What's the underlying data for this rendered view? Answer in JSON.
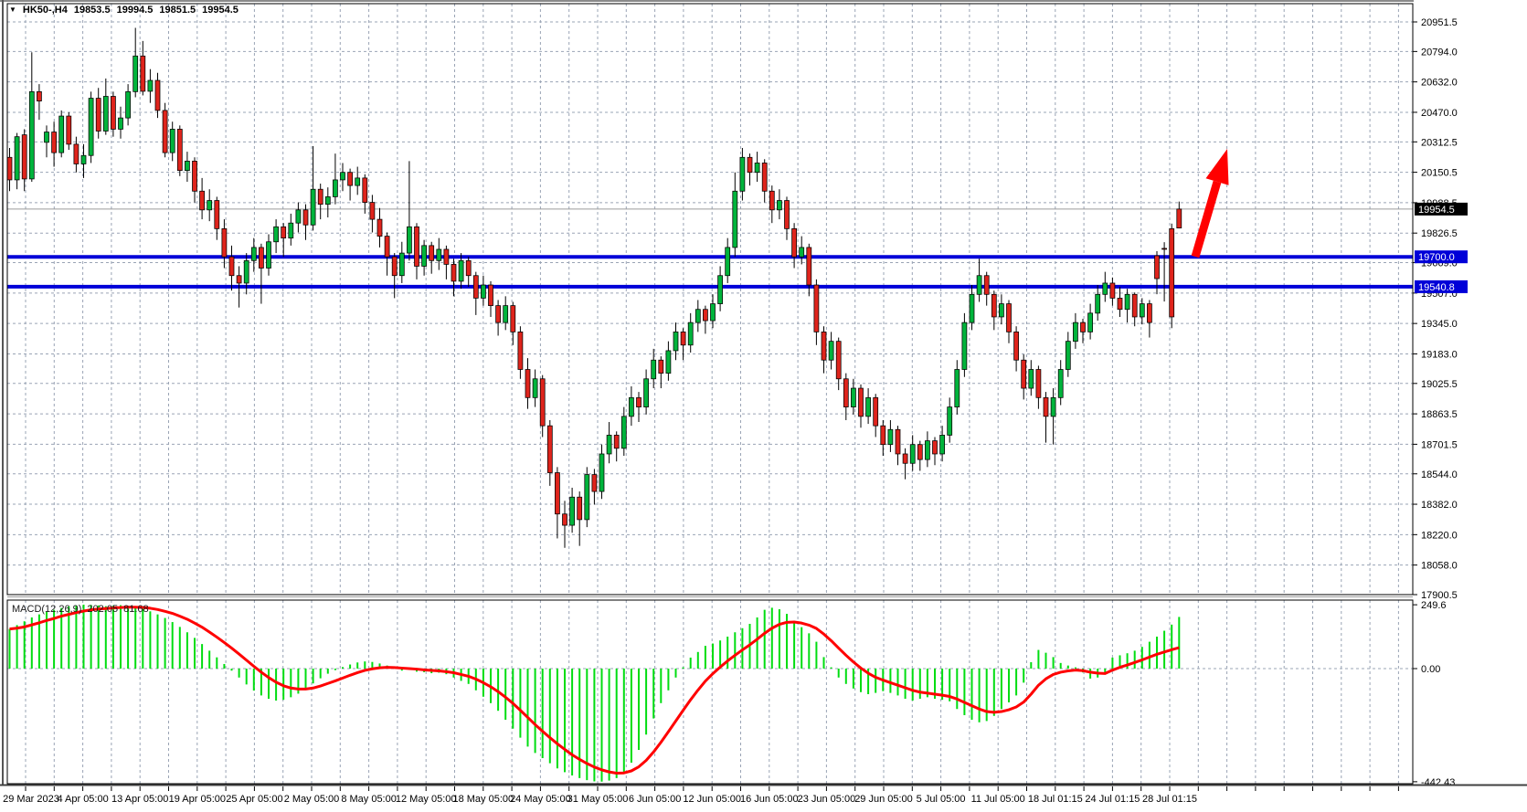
{
  "window": {
    "top_info": {
      "symbol_period": "HK50-,H4",
      "open": "19853.5",
      "high": "19994.5",
      "low": "19851.5",
      "close": "19954.5"
    }
  },
  "indicator_label": {
    "name": "MACD(12,26,9)",
    "macd_value": "202.05",
    "signal_value": "81.68"
  },
  "price_axis": {
    "labels": [
      "20951.5",
      "20794.0",
      "20632.0",
      "20470.0",
      "20312.5",
      "20150.5",
      "19988.5",
      "19826.5",
      "19669.0",
      "19507.0",
      "19345.0",
      "19183.0",
      "19025.5",
      "18863.5",
      "18701.5",
      "18544.0",
      "18382.0",
      "18220.0",
      "18058.0",
      "17900.5"
    ],
    "current_price_tag": "19954.5",
    "level_tags": [
      "19700.0",
      "19540.8"
    ]
  },
  "macd_axis": {
    "max": "249.6",
    "zero": "0.00",
    "min": "-442.43"
  },
  "time_axis": {
    "labels": [
      "29 Mar 2023",
      "4 Apr 05:00",
      "13 Apr 05:00",
      "19 Apr 05:00",
      "25 Apr 05:00",
      "2 May 05:00",
      "8 May 05:00",
      "12 May 05:00",
      "18 May 05:00",
      "24 May 05:00",
      "31 May 05:00",
      "6 Jun 05:00",
      "12 Jun 05:00",
      "16 Jun 05:00",
      "23 Jun 05:00",
      "29 Jun 05:00",
      "5 Jul 05:00",
      "11 Jul 05:00",
      "18 Jul 01:15",
      "24 Jul 01:15",
      "28 Jul 01:15"
    ]
  },
  "colors": {
    "bull": "#00b43c",
    "bear": "#df241c",
    "wick": "#000000",
    "candle_border": "#000000",
    "macd_bar": "#00dd11",
    "signal_line": "#ff0000",
    "level_line": "#0000d8",
    "bid_line": "#9b9b9b",
    "grid": "#9aa4b5",
    "arrow": "#ff0000",
    "tag_current_bg": "#000000",
    "tag_level_bg": "#0000d8"
  },
  "chart_data": {
    "type": "candlestick+macd",
    "symbol": "HK50-",
    "timeframe": "H4",
    "title": "HK50- H4 candlestick chart with MACD(12,26,9)",
    "price_axis_range": {
      "top_label": 20951.5,
      "bottom_label": 17900.5
    },
    "macd_axis_range": {
      "max": 249.6,
      "min": -442.43
    },
    "grid": true,
    "horizontal_levels": [
      {
        "price": 19700.0,
        "label": "19700.0"
      },
      {
        "price": 19540.8,
        "label": "19540.8"
      }
    ],
    "bid_line_price": 19954.5,
    "annotation_arrow": {
      "tail": [
        1308,
        281
      ],
      "tip": [
        1343,
        163
      ]
    },
    "last_candle_ohlc": {
      "open": 19853.5,
      "high": 19994.5,
      "low": 19851.5,
      "close": 19954.5
    },
    "candles": [
      [
        20230,
        20280,
        20050,
        20110
      ],
      [
        20110,
        20360,
        20060,
        20340
      ],
      [
        20350,
        20380,
        20050,
        20115
      ],
      [
        20115,
        20790,
        20100,
        20580
      ],
      [
        20580,
        20620,
        20430,
        20530
      ],
      [
        20310,
        20400,
        20230,
        20365
      ],
      [
        20365,
        20420,
        20180,
        20255
      ],
      [
        20255,
        20480,
        20230,
        20450
      ],
      [
        20450,
        20470,
        20270,
        20300
      ],
      [
        20300,
        20340,
        20150,
        20195
      ],
      [
        20195,
        20300,
        20120,
        20240
      ],
      [
        20240,
        20580,
        20200,
        20545
      ],
      [
        20545,
        20600,
        20330,
        20370
      ],
      [
        20370,
        20650,
        20350,
        20555
      ],
      [
        20555,
        20580,
        20340,
        20380
      ],
      [
        20380,
        20500,
        20330,
        20440
      ],
      [
        20440,
        20620,
        20400,
        20580
      ],
      [
        20580,
        20920,
        20550,
        20770
      ],
      [
        20770,
        20850,
        20560,
        20582
      ],
      [
        20582,
        20700,
        20520,
        20640
      ],
      [
        20640,
        20680,
        20440,
        20480
      ],
      [
        20480,
        20520,
        20230,
        20255
      ],
      [
        20255,
        20420,
        20210,
        20380
      ],
      [
        20380,
        20400,
        20130,
        20160
      ],
      [
        20160,
        20260,
        20100,
        20210
      ],
      [
        20210,
        20230,
        19990,
        20050
      ],
      [
        20050,
        20120,
        19900,
        19950
      ],
      [
        19950,
        20060,
        19890,
        20000
      ],
      [
        20000,
        20020,
        19790,
        19850
      ],
      [
        19850,
        19900,
        19640,
        19700
      ],
      [
        19700,
        19760,
        19520,
        19600
      ],
      [
        19600,
        19650,
        19430,
        19560
      ],
      [
        19560,
        19720,
        19500,
        19680
      ],
      [
        19680,
        19800,
        19620,
        19750
      ],
      [
        19750,
        19770,
        19450,
        19640
      ],
      [
        19640,
        19820,
        19600,
        19780
      ],
      [
        19780,
        19900,
        19720,
        19860
      ],
      [
        19860,
        19880,
        19700,
        19800
      ],
      [
        19800,
        19930,
        19760,
        19880
      ],
      [
        19880,
        19990,
        19830,
        19950
      ],
      [
        19950,
        19980,
        19790,
        19870
      ],
      [
        19870,
        20290,
        19840,
        20060
      ],
      [
        20060,
        20090,
        19900,
        19980
      ],
      [
        19980,
        20070,
        19910,
        20020
      ],
      [
        20020,
        20250,
        19980,
        20110
      ],
      [
        20110,
        20200,
        20050,
        20150
      ],
      [
        20150,
        20170,
        20000,
        20080
      ],
      [
        20080,
        20180,
        20030,
        20120
      ],
      [
        20120,
        20140,
        19930,
        19990
      ],
      [
        19990,
        20030,
        19830,
        19900
      ],
      [
        19900,
        19960,
        19750,
        19810
      ],
      [
        19810,
        19830,
        19600,
        19700
      ],
      [
        19700,
        19720,
        19480,
        19600
      ],
      [
        19600,
        19780,
        19560,
        19720
      ],
      [
        19720,
        20210,
        19680,
        19860
      ],
      [
        19860,
        19880,
        19580,
        19650
      ],
      [
        19650,
        19790,
        19600,
        19760
      ],
      [
        19760,
        19780,
        19610,
        19680
      ],
      [
        19680,
        19800,
        19630,
        19740
      ],
      [
        19740,
        19760,
        19580,
        19660
      ],
      [
        19660,
        19690,
        19490,
        19570
      ],
      [
        19570,
        19720,
        19530,
        19680
      ],
      [
        19680,
        19700,
        19540,
        19600
      ],
      [
        19600,
        19620,
        19390,
        19480
      ],
      [
        19480,
        19600,
        19440,
        19550
      ],
      [
        19550,
        19570,
        19380,
        19440
      ],
      [
        19440,
        19470,
        19280,
        19350
      ],
      [
        19350,
        19490,
        19310,
        19440
      ],
      [
        19440,
        19460,
        19230,
        19300
      ],
      [
        19300,
        19330,
        19050,
        19100
      ],
      [
        19100,
        19160,
        18890,
        18950
      ],
      [
        18950,
        19100,
        18900,
        19050
      ],
      [
        19050,
        19070,
        18740,
        18800
      ],
      [
        18800,
        18830,
        18480,
        18550
      ],
      [
        18550,
        18580,
        18200,
        18330
      ],
      [
        18330,
        18400,
        18150,
        18270
      ],
      [
        18270,
        18470,
        18230,
        18420
      ],
      [
        18420,
        18450,
        18160,
        18300
      ],
      [
        18300,
        18580,
        18260,
        18540
      ],
      [
        18540,
        18570,
        18380,
        18450
      ],
      [
        18450,
        18700,
        18410,
        18650
      ],
      [
        18650,
        18820,
        18600,
        18750
      ],
      [
        18750,
        18770,
        18610,
        18680
      ],
      [
        18680,
        18900,
        18640,
        18850
      ],
      [
        18850,
        19010,
        18800,
        18950
      ],
      [
        18950,
        18980,
        18820,
        18900
      ],
      [
        18900,
        19100,
        18860,
        19050
      ],
      [
        19050,
        19210,
        19000,
        19150
      ],
      [
        19150,
        19170,
        19000,
        19080
      ],
      [
        19080,
        19250,
        19040,
        19200
      ],
      [
        19200,
        19350,
        19150,
        19300
      ],
      [
        19300,
        19320,
        19150,
        19230
      ],
      [
        19230,
        19400,
        19190,
        19350
      ],
      [
        19350,
        19470,
        19300,
        19420
      ],
      [
        19420,
        19440,
        19290,
        19360
      ],
      [
        19360,
        19500,
        19320,
        19450
      ],
      [
        19450,
        19650,
        19410,
        19600
      ],
      [
        19600,
        19800,
        19560,
        19750
      ],
      [
        19750,
        20150,
        19700,
        20050
      ],
      [
        20050,
        20280,
        20000,
        20230
      ],
      [
        20230,
        20250,
        20080,
        20150
      ],
      [
        20150,
        20260,
        20100,
        20200
      ],
      [
        20200,
        20220,
        19990,
        20050
      ],
      [
        20050,
        20080,
        19880,
        19950
      ],
      [
        19950,
        20060,
        19900,
        20000
      ],
      [
        20000,
        20020,
        19790,
        19850
      ],
      [
        19850,
        19880,
        19640,
        19700
      ],
      [
        19700,
        19810,
        19660,
        19750
      ],
      [
        19750,
        19770,
        19490,
        19550
      ],
      [
        19550,
        19580,
        19230,
        19300
      ],
      [
        19300,
        19330,
        19080,
        19150
      ],
      [
        19150,
        19300,
        19100,
        19250
      ],
      [
        19250,
        19270,
        18990,
        19050
      ],
      [
        19050,
        19080,
        18830,
        18900
      ],
      [
        18900,
        19050,
        18860,
        19000
      ],
      [
        19000,
        19020,
        18790,
        18850
      ],
      [
        18850,
        19000,
        18810,
        18950
      ],
      [
        18950,
        18970,
        18740,
        18800
      ],
      [
        18800,
        18830,
        18640,
        18700
      ],
      [
        18700,
        18830,
        18660,
        18780
      ],
      [
        18780,
        18800,
        18590,
        18650
      ],
      [
        18650,
        18680,
        18515,
        18600
      ],
      [
        18600,
        18750,
        18560,
        18700
      ],
      [
        18700,
        18720,
        18560,
        18620
      ],
      [
        18620,
        18770,
        18580,
        18720
      ],
      [
        18720,
        18740,
        18590,
        18650
      ],
      [
        18650,
        18800,
        18610,
        18750
      ],
      [
        18750,
        18950,
        18710,
        18900
      ],
      [
        18900,
        19150,
        18860,
        19100
      ],
      [
        19100,
        19400,
        19060,
        19350
      ],
      [
        19350,
        19550,
        19310,
        19500
      ],
      [
        19500,
        19690,
        19460,
        19600
      ],
      [
        19600,
        19620,
        19440,
        19500
      ],
      [
        19500,
        19520,
        19310,
        19380
      ],
      [
        19380,
        19500,
        19340,
        19450
      ],
      [
        19450,
        19470,
        19240,
        19300
      ],
      [
        19300,
        19330,
        19090,
        19150
      ],
      [
        19150,
        19180,
        18940,
        19000
      ],
      [
        19000,
        19150,
        18960,
        19100
      ],
      [
        19100,
        19120,
        18890,
        18950
      ],
      [
        18950,
        18980,
        18710,
        18850
      ],
      [
        18850,
        19000,
        18700,
        18950
      ],
      [
        18950,
        19150,
        18910,
        19100
      ],
      [
        19100,
        19300,
        19060,
        19250
      ],
      [
        19250,
        19400,
        19210,
        19350
      ],
      [
        19350,
        19370,
        19240,
        19300
      ],
      [
        19300,
        19450,
        19260,
        19400
      ],
      [
        19400,
        19550,
        19360,
        19500
      ],
      [
        19500,
        19620,
        19460,
        19560
      ],
      [
        19560,
        19590,
        19440,
        19480
      ],
      [
        19480,
        19540,
        19380,
        19420
      ],
      [
        19420,
        19530,
        19350,
        19500
      ],
      [
        19500,
        19510,
        19330,
        19380
      ],
      [
        19380,
        19480,
        19340,
        19450
      ],
      [
        19450,
        19470,
        19270,
        19350
      ],
      [
        19706,
        19730,
        19501,
        19584
      ],
      [
        19745,
        19778,
        19462,
        19741
      ],
      [
        19850,
        19877,
        19320,
        19380
      ],
      [
        19853.5,
        19994.5,
        19851.5,
        19954.5
      ]
    ],
    "macd": [
      155,
      170,
      185,
      200,
      212,
      222,
      230,
      237,
      243,
      247,
      250,
      249,
      247,
      244,
      246,
      248,
      245,
      240,
      233,
      224,
      212,
      198,
      182,
      163,
      142,
      120,
      96,
      70,
      44,
      18,
      -8,
      -35,
      -62,
      -86,
      -105,
      -118,
      -125,
      -122,
      -112,
      -98,
      -80,
      -58,
      -38,
      -20,
      -6,
      6,
      16,
      24,
      28,
      26,
      20,
      12,
      2,
      -8,
      -5,
      -12,
      -14,
      -18,
      -16,
      -22,
      -35,
      -48,
      -60,
      -85,
      -110,
      -135,
      -165,
      -200,
      -235,
      -270,
      -305,
      -330,
      -350,
      -370,
      -390,
      -405,
      -418,
      -428,
      -436,
      -441,
      -442,
      -438,
      -428,
      -405,
      -368,
      -318,
      -258,
      -195,
      -135,
      -85,
      -35,
      5,
      43,
      65,
      89,
      98,
      110,
      125,
      142,
      158,
      175,
      200,
      230,
      238,
      232,
      214,
      185,
      162,
      138,
      105,
      45,
      5,
      -35,
      -60,
      -78,
      -92,
      -100,
      -95,
      -88,
      -95,
      -105,
      -118,
      -125,
      -118,
      -112,
      -118,
      -122,
      -128,
      -158,
      -182,
      -200,
      -210,
      -205,
      -185,
      -158,
      -132,
      -105,
      -55,
      25,
      73,
      62,
      45,
      22,
      12,
      5,
      -15,
      -39,
      -35,
      -20,
      43,
      52,
      60,
      70,
      85,
      105,
      125,
      148,
      172,
      202
    ],
    "signal": [
      155,
      158,
      163,
      171,
      179,
      188,
      196,
      205,
      212,
      219,
      225,
      230,
      233,
      235,
      237,
      239,
      240,
      240,
      239,
      236,
      231,
      224,
      216,
      205,
      193,
      178,
      162,
      143,
      123,
      102,
      80,
      57,
      33,
      9,
      -14,
      -35,
      -53,
      -67,
      -76,
      -80,
      -80,
      -76,
      -68,
      -58,
      -48,
      -37,
      -26,
      -16,
      -7,
      -1,
      3,
      5,
      4,
      2,
      0,
      -2,
      -5,
      -7,
      -9,
      -12,
      -16,
      -23,
      -30,
      -41,
      -55,
      -71,
      -90,
      -112,
      -136,
      -163,
      -191,
      -219,
      -245,
      -270,
      -294,
      -316,
      -337,
      -355,
      -371,
      -385,
      -396,
      -404,
      -409,
      -408,
      -400,
      -384,
      -359,
      -326,
      -288,
      -247,
      -205,
      -163,
      -122,
      -84,
      -49,
      -20,
      6,
      30,
      52,
      73,
      93,
      115,
      138,
      158,
      173,
      181,
      182,
      178,
      170,
      157,
      135,
      109,
      80,
      52,
      26,
      2,
      -18,
      -34,
      -45,
      -55,
      -65,
      -75,
      -85,
      -92,
      -96,
      -100,
      -104,
      -109,
      -119,
      -132,
      -145,
      -158,
      -168,
      -171,
      -168,
      -161,
      -150,
      -131,
      -100,
      -65,
      -40,
      -23,
      -14,
      -9,
      -6,
      -8,
      -14,
      -18,
      -19,
      -6,
      5,
      14,
      24,
      34,
      45,
      56,
      65,
      74,
      82
    ]
  }
}
